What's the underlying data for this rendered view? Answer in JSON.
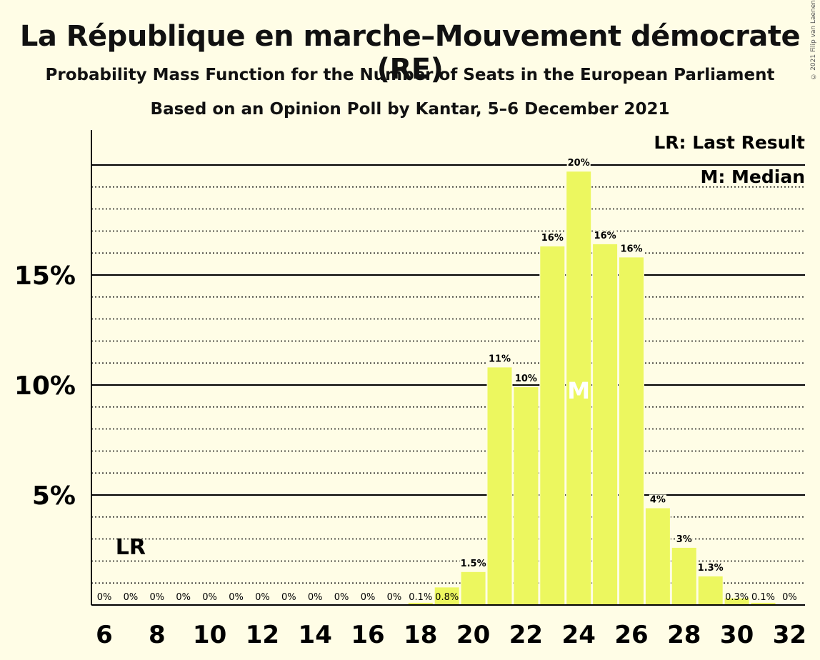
{
  "title": "La République en marche–Mouvement démocrate (RE)",
  "subtitle": "Probability Mass Function for the Number of Seats in the European Parliament",
  "subtitle2": "Based on an Opinion Poll by Kantar, 5–6 December 2021",
  "copyright": "© 2021 Filip van Laenen",
  "legend": {
    "lr": "LR: Last Result",
    "median": "M: Median"
  },
  "chart_data": {
    "type": "bar",
    "x": [
      6,
      7,
      8,
      9,
      10,
      11,
      12,
      13,
      14,
      15,
      16,
      17,
      18,
      19,
      20,
      21,
      22,
      23,
      24,
      25,
      26,
      27,
      28,
      29,
      30,
      31,
      32
    ],
    "values": [
      0,
      0,
      0,
      0,
      0,
      0,
      0,
      0,
      0,
      0,
      0,
      0,
      0.1,
      0.8,
      1.5,
      10.8,
      9.9,
      16.3,
      19.7,
      16.4,
      15.8,
      4.4,
      2.6,
      1.3,
      0.3,
      0.1,
      0
    ],
    "labels": [
      "0%",
      "0%",
      "0%",
      "0%",
      "0%",
      "0%",
      "0%",
      "0%",
      "0%",
      "0%",
      "0%",
      "0%",
      "0.1%",
      "0.8%",
      "1.5%",
      "11%",
      "10%",
      "16%",
      "20%",
      "16%",
      "16%",
      "4%",
      "3%",
      "1.3%",
      "0.3%",
      "0.1%",
      "0%"
    ],
    "x_ticks": [
      "6",
      "8",
      "10",
      "12",
      "14",
      "16",
      "18",
      "20",
      "22",
      "24",
      "26",
      "28",
      "30",
      "32"
    ],
    "y_ticks": [
      "5%",
      "10%",
      "15%"
    ],
    "ylim": [
      0,
      21.5
    ],
    "last_result": 7,
    "last_result_label": "LR",
    "median": 24,
    "median_label": "M",
    "bar_color": "#ecf75f"
  }
}
